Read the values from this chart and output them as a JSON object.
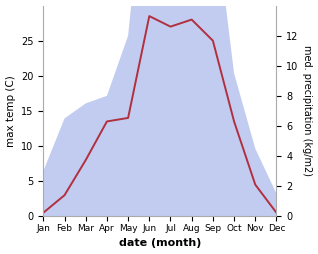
{
  "months": [
    "Jan",
    "Feb",
    "Mar",
    "Apr",
    "May",
    "Jun",
    "Jul",
    "Aug",
    "Sep",
    "Oct",
    "Nov",
    "Dec"
  ],
  "temperature": [
    0.5,
    3.0,
    8.0,
    13.5,
    14.0,
    28.5,
    27.0,
    28.0,
    25.0,
    13.5,
    4.5,
    0.5
  ],
  "precipitation": [
    3.0,
    6.5,
    7.5,
    8.0,
    12.0,
    26.0,
    27.0,
    27.5,
    21.0,
    9.5,
    4.5,
    1.5
  ],
  "temp_color": "#b03040",
  "precip_color": "#b8c4ee",
  "xlabel": "date (month)",
  "ylabel_left": "max temp (C)",
  "ylabel_right": "med. precipitation (kg/m2)",
  "ylim_left": [
    0,
    30
  ],
  "ylim_right": [
    0,
    14
  ],
  "yticks_left": [
    0,
    5,
    10,
    15,
    20,
    25
  ],
  "yticks_right": [
    0,
    2,
    4,
    6,
    8,
    10,
    12
  ],
  "figsize": [
    3.18,
    2.54
  ],
  "dpi": 100
}
